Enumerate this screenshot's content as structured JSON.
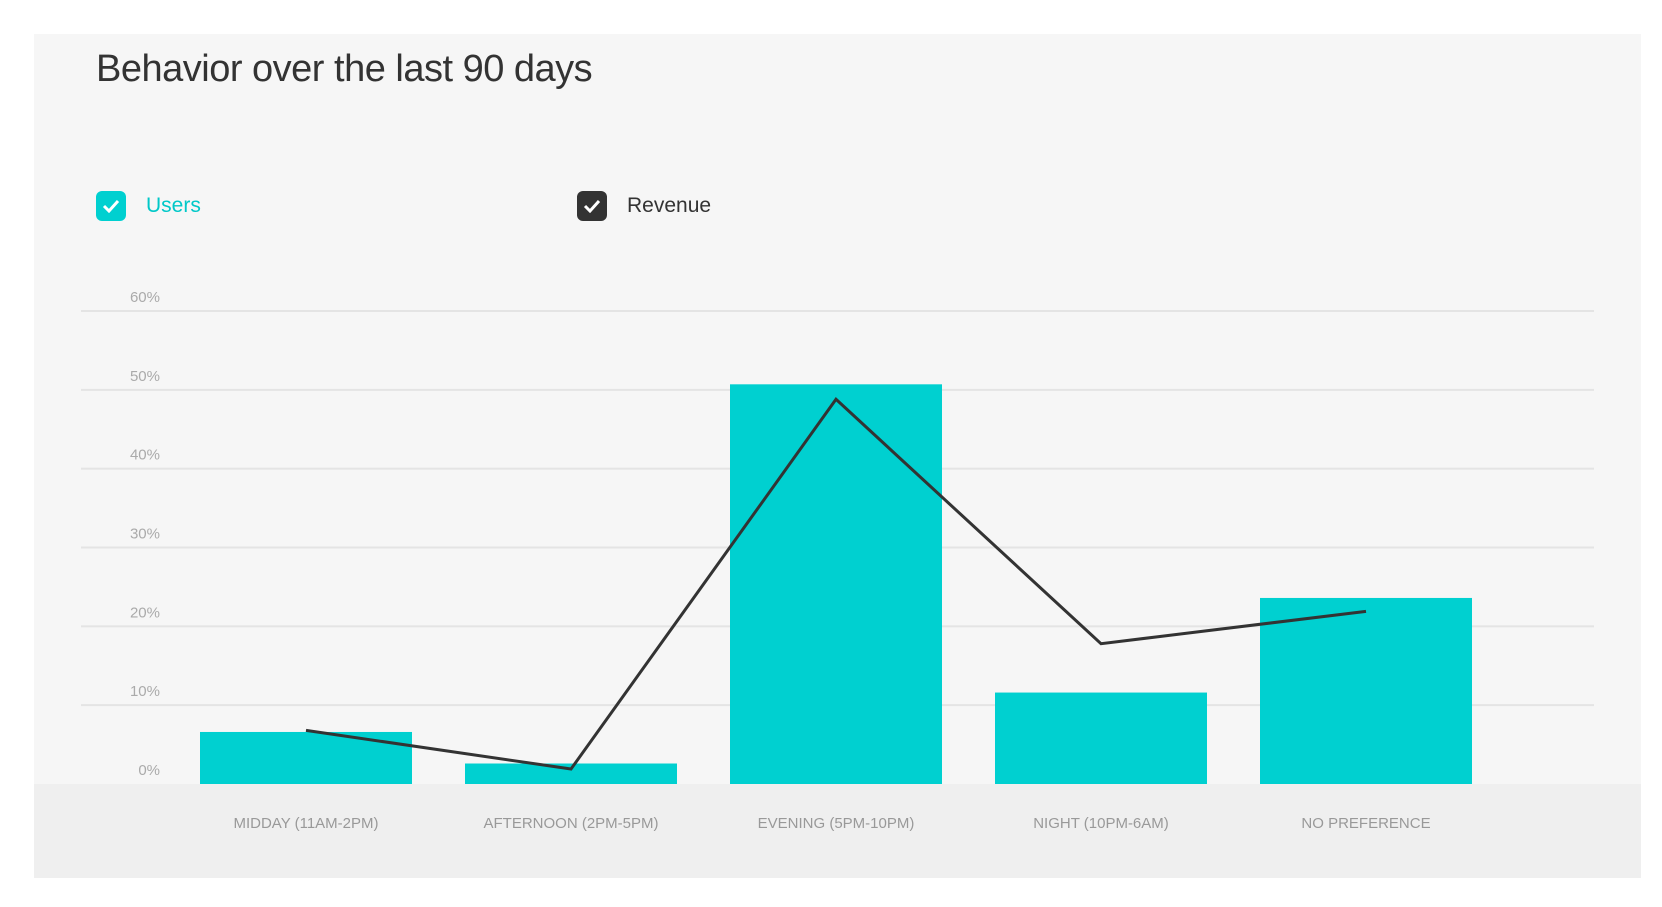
{
  "chart_data": {
    "type": "bar",
    "title": "Behavior over the last 90 days",
    "categories": [
      "MIDDAY (11AM-2PM)",
      "AFTERNOON (2PM-5PM)",
      "EVENING (5PM-10PM)",
      "NIGHT (10PM-6AM)",
      "NO PREFERENCE"
    ],
    "series": [
      {
        "name": "Users",
        "type": "bar",
        "color": "#00d0d0",
        "checked": true,
        "values": [
          6.6,
          2.6,
          50.7,
          11.6,
          23.6
        ]
      },
      {
        "name": "Revenue",
        "type": "line",
        "color": "#333333",
        "checked": true,
        "values": [
          6.8,
          1.9,
          48.8,
          17.8,
          21.9
        ]
      }
    ],
    "yticks": [
      "0%",
      "10%",
      "20%",
      "30%",
      "40%",
      "50%",
      "60%"
    ],
    "ylim": [
      0,
      60
    ],
    "grid": true,
    "legend_placement": "top-left"
  }
}
